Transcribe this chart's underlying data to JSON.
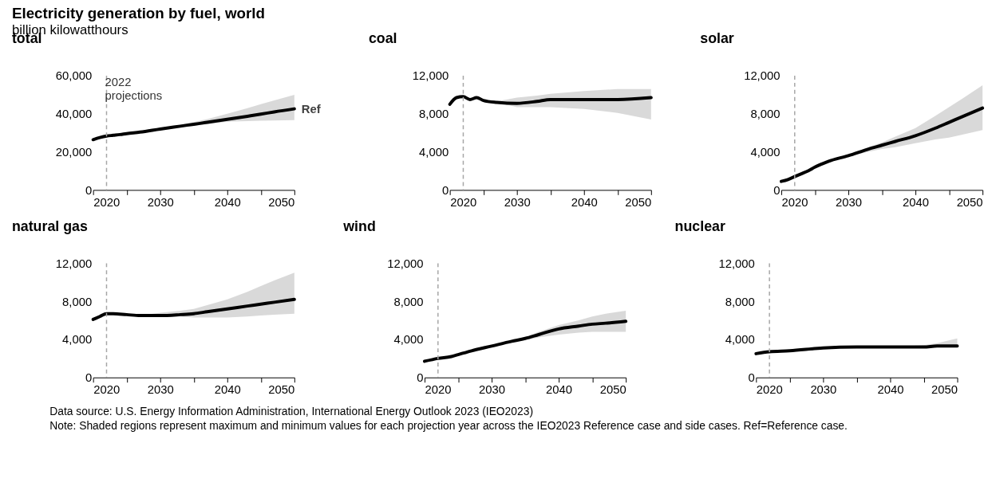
{
  "chart_data": [
    {
      "type": "other",
      "title": "Electricity generation by fuel, world",
      "subtitle": "billion kilowatthours"
    },
    {
      "type": "line",
      "title": "total",
      "x": [
        2020,
        2021,
        2022,
        2023,
        2024,
        2025,
        2027,
        2030,
        2033,
        2035,
        2037,
        2040,
        2043,
        2045,
        2047,
        2050
      ],
      "series": [
        {
          "color": "#000000",
          "values": [
            26400,
            27500,
            28300,
            28700,
            29100,
            29600,
            30400,
            32000,
            33500,
            34500,
            35500,
            37100,
            38700,
            39800,
            41000,
            42600
          ],
          "lower": [
            null,
            null,
            null,
            null,
            null,
            null,
            30400,
            31800,
            33000,
            33700,
            34500,
            35800,
            36200,
            36400,
            36500,
            36700
          ],
          "upper": [
            null,
            null,
            null,
            null,
            null,
            null,
            30400,
            32300,
            34200,
            35600,
            37200,
            40000,
            43000,
            45000,
            47000,
            50000
          ]
        }
      ],
      "xlim": [
        2020,
        2050
      ],
      "xticks": [
        2020,
        {
          "value": 2025,
          "label": null
        },
        2030,
        {
          "value": 2035,
          "label": null
        },
        2040,
        {
          "value": 2045,
          "label": null
        },
        2050
      ],
      "ylim": [
        0,
        60000
      ],
      "yticks": [
        {
          "value": 0,
          "label": "0"
        },
        {
          "value": 20000,
          "label": "20,000"
        },
        {
          "value": 40000,
          "label": "40,000"
        },
        {
          "value": 60000,
          "label": "60,000"
        }
      ],
      "ref_lines": [
        {
          "axis": "x",
          "value": 2022,
          "label": "2022 projections",
          "color": "#a6a6a6",
          "line_style": "dashed"
        }
      ],
      "annotations": [
        {
          "text": "Ref",
          "x": 2050,
          "y": 42600
        }
      ]
    },
    {
      "type": "line",
      "title": "coal",
      "x": [
        2020,
        2021,
        2022,
        2023,
        2024,
        2025,
        2027,
        2030,
        2033,
        2035,
        2040,
        2045,
        2050
      ],
      "series": [
        {
          "color": "#000000",
          "values": [
            9000,
            9700,
            9800,
            9500,
            9700,
            9400,
            9200,
            9100,
            9300,
            9500,
            9500,
            9500,
            9700
          ],
          "lower": [
            null,
            null,
            null,
            null,
            null,
            null,
            9200,
            8700,
            8700,
            8700,
            8500,
            8100,
            7400
          ],
          "upper": [
            null,
            null,
            null,
            null,
            null,
            null,
            9300,
            9700,
            9900,
            10100,
            10400,
            10600,
            10600
          ]
        }
      ],
      "xlim": [
        2020,
        2050
      ],
      "xticks": [
        2020,
        {
          "value": 2025,
          "label": null
        },
        2030,
        {
          "value": 2035,
          "label": null
        },
        2040,
        {
          "value": 2045,
          "label": null
        },
        2050
      ],
      "ylim": [
        0,
        12000
      ],
      "yticks": [
        {
          "value": 0,
          "label": "0"
        },
        {
          "value": 4000,
          "label": "4,000"
        },
        {
          "value": 8000,
          "label": "8,000"
        },
        {
          "value": 12000,
          "label": "12,000"
        }
      ],
      "ref_lines": [
        {
          "axis": "x",
          "value": 2022,
          "color": "#a6a6a6",
          "line_style": "dashed"
        }
      ]
    },
    {
      "type": "line",
      "title": "solar",
      "x": [
        2020,
        2021,
        2022,
        2023,
        2024,
        2025,
        2027,
        2030,
        2033,
        2035,
        2037,
        2040,
        2043,
        2045,
        2047,
        2050
      ],
      "series": [
        {
          "color": "#000000",
          "values": [
            900,
            1100,
            1400,
            1700,
            2000,
            2400,
            3000,
            3600,
            4300,
            4700,
            5100,
            5700,
            6500,
            7100,
            7700,
            8600
          ],
          "lower": [
            null,
            null,
            null,
            null,
            null,
            null,
            3000,
            3500,
            4000,
            4300,
            4500,
            4900,
            5300,
            5500,
            5800,
            6300
          ],
          "upper": [
            null,
            null,
            null,
            null,
            null,
            null,
            3000,
            3700,
            4500,
            5000,
            5600,
            6500,
            7800,
            8700,
            9600,
            11000
          ]
        }
      ],
      "xlim": [
        2020,
        2050
      ],
      "xticks": [
        2020,
        {
          "value": 2025,
          "label": null
        },
        2030,
        {
          "value": 2035,
          "label": null
        },
        2040,
        {
          "value": 2045,
          "label": null
        },
        2050
      ],
      "ylim": [
        0,
        12000
      ],
      "yticks": [
        {
          "value": 0,
          "label": "0"
        },
        {
          "value": 4000,
          "label": "4,000"
        },
        {
          "value": 8000,
          "label": "8,000"
        },
        {
          "value": 12000,
          "label": "12,000"
        }
      ],
      "ref_lines": [
        {
          "axis": "x",
          "value": 2022,
          "color": "#a6a6a6",
          "line_style": "dashed"
        }
      ]
    },
    {
      "type": "line",
      "title": "natural gas",
      "x": [
        2020,
        2021,
        2022,
        2023,
        2025,
        2027,
        2030,
        2033,
        2035,
        2037,
        2040,
        2043,
        2045,
        2047,
        2050
      ],
      "series": [
        {
          "color": "#000000",
          "values": [
            6100,
            6400,
            6700,
            6700,
            6600,
            6500,
            6500,
            6600,
            6700,
            6900,
            7200,
            7500,
            7700,
            7900,
            8200
          ],
          "lower": [
            null,
            null,
            null,
            null,
            null,
            6500,
            6400,
            6400,
            6300,
            6300,
            6300,
            6400,
            6500,
            6600,
            6700
          ],
          "upper": [
            null,
            null,
            null,
            null,
            null,
            6500,
            6800,
            7000,
            7200,
            7600,
            8200,
            9000,
            9600,
            10200,
            11000
          ]
        }
      ],
      "xlim": [
        2020,
        2050
      ],
      "xticks": [
        2020,
        {
          "value": 2025,
          "label": null
        },
        2030,
        {
          "value": 2035,
          "label": null
        },
        2040,
        {
          "value": 2045,
          "label": null
        },
        2050
      ],
      "ylim": [
        0,
        12000
      ],
      "yticks": [
        {
          "value": 0,
          "label": "0"
        },
        {
          "value": 4000,
          "label": "4,000"
        },
        {
          "value": 8000,
          "label": "8,000"
        },
        {
          "value": 12000,
          "label": "12,000"
        }
      ],
      "ref_lines": [
        {
          "axis": "x",
          "value": 2022,
          "color": "#a6a6a6",
          "line_style": "dashed"
        }
      ]
    },
    {
      "type": "line",
      "title": "wind",
      "x": [
        2020,
        2022,
        2024,
        2025,
        2027,
        2030,
        2033,
        2035,
        2037,
        2040,
        2043,
        2045,
        2047,
        2050
      ],
      "series": [
        {
          "color": "#000000",
          "values": [
            1700,
            2000,
            2200,
            2400,
            2800,
            3300,
            3800,
            4100,
            4500,
            5100,
            5400,
            5600,
            5700,
            5900
          ],
          "lower": [
            null,
            null,
            null,
            null,
            null,
            null,
            3800,
            3900,
            4200,
            4500,
            4700,
            4800,
            4800,
            4800
          ],
          "upper": [
            null,
            null,
            null,
            null,
            null,
            null,
            3800,
            4200,
            4800,
            5500,
            6000,
            6400,
            6700,
            7000
          ]
        }
      ],
      "xlim": [
        2020,
        2050
      ],
      "xticks": [
        2020,
        {
          "value": 2025,
          "label": null
        },
        2030,
        {
          "value": 2035,
          "label": null
        },
        2040,
        {
          "value": 2045,
          "label": null
        },
        2050
      ],
      "ylim": [
        0,
        12000
      ],
      "yticks": [
        {
          "value": 0,
          "label": "0"
        },
        {
          "value": 4000,
          "label": "4,000"
        },
        {
          "value": 8000,
          "label": "8,000"
        },
        {
          "value": 12000,
          "label": "12,000"
        }
      ],
      "ref_lines": [
        {
          "axis": "x",
          "value": 2022,
          "color": "#a6a6a6",
          "line_style": "dashed"
        }
      ]
    },
    {
      "type": "line",
      "title": "nuclear",
      "x": [
        2020,
        2022,
        2025,
        2030,
        2035,
        2040,
        2043,
        2045,
        2047,
        2050
      ],
      "series": [
        {
          "color": "#000000",
          "values": [
            2500,
            2700,
            2800,
            3100,
            3200,
            3200,
            3200,
            3200,
            3300,
            3300
          ],
          "lower": [
            null,
            null,
            null,
            null,
            null,
            3200,
            3200,
            3200,
            3200,
            3200
          ],
          "upper": [
            null,
            null,
            null,
            null,
            null,
            3200,
            3300,
            3400,
            3600,
            4100
          ]
        }
      ],
      "xlim": [
        2020,
        2050
      ],
      "xticks": [
        2020,
        {
          "value": 2025,
          "label": null
        },
        2030,
        {
          "value": 2035,
          "label": null
        },
        2040,
        {
          "value": 2045,
          "label": null
        },
        2050
      ],
      "ylim": [
        0,
        12000
      ],
      "yticks": [
        {
          "value": 0,
          "label": "0"
        },
        {
          "value": 4000,
          "label": "4,000"
        },
        {
          "value": 8000,
          "label": "8,000"
        },
        {
          "value": 12000,
          "label": "12,000"
        }
      ],
      "ref_lines": [
        {
          "axis": "x",
          "value": 2022,
          "color": "#a6a6a6",
          "line_style": "dashed"
        }
      ]
    },
    {
      "type": "other",
      "annotations": [
        "Data source: U.S. Energy Information Administration, International Energy Outlook 2023 (IEO2023)",
        "Note: Shaded regions represent maximum and minimum values for each projection year across the IEO2023 Reference case and side cases. Ref=Reference case."
      ]
    }
  ]
}
